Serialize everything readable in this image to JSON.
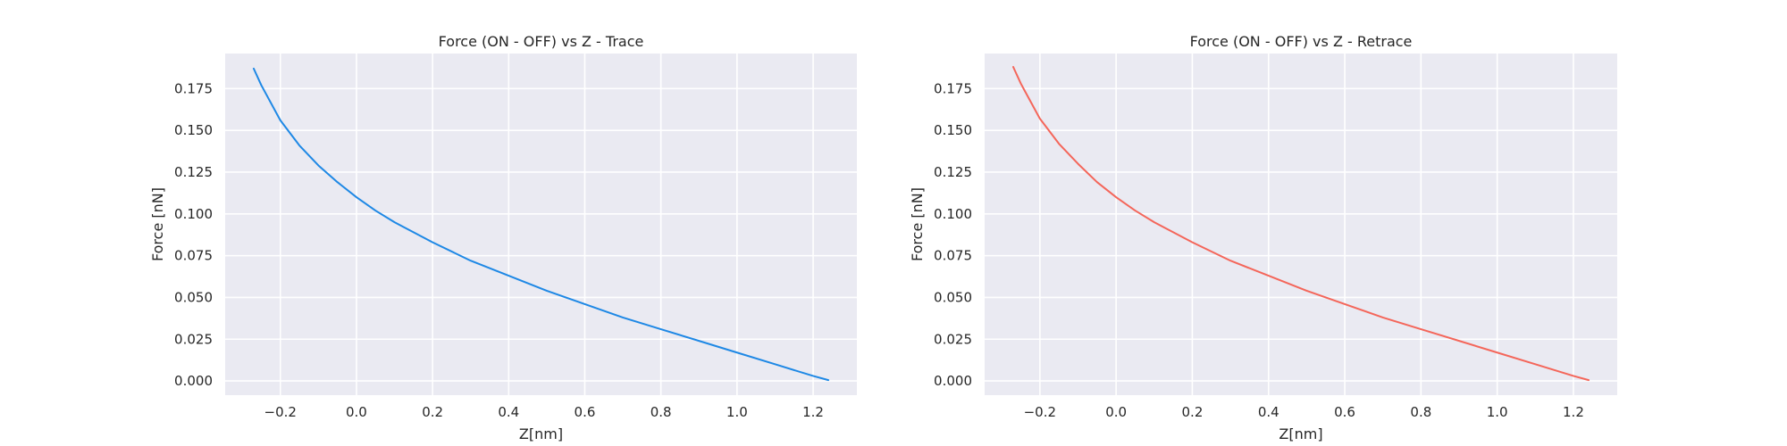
{
  "chart_data": [
    {
      "type": "line",
      "title": "Force (ON - OFF) vs Z - Trace",
      "xlabel": "Z[nm]",
      "ylabel": "Force [nN]",
      "xlim": [
        -0.345,
        1.315
      ],
      "ylim": [
        -0.0085,
        0.196
      ],
      "xticks": [
        -0.2,
        0.0,
        0.2,
        0.4,
        0.6,
        0.8,
        1.0,
        1.2
      ],
      "xtick_labels": [
        "−0.2",
        "0.0",
        "0.2",
        "0.4",
        "0.6",
        "0.8",
        "1.0",
        "1.2"
      ],
      "yticks": [
        0.0,
        0.025,
        0.05,
        0.075,
        0.1,
        0.125,
        0.15,
        0.175
      ],
      "ytick_labels": [
        "0.000",
        "0.025",
        "0.050",
        "0.075",
        "0.100",
        "0.125",
        "0.150",
        "0.175"
      ],
      "grid": true,
      "series": [
        {
          "color": "#1e88e5",
          "x": [
            -0.27,
            -0.25,
            -0.2,
            -0.15,
            -0.1,
            -0.05,
            0.0,
            0.05,
            0.1,
            0.15,
            0.2,
            0.3,
            0.4,
            0.5,
            0.6,
            0.7,
            0.8,
            0.9,
            1.0,
            1.1,
            1.2,
            1.24
          ],
          "y": [
            0.187,
            0.177,
            0.156,
            0.141,
            0.129,
            0.119,
            0.11,
            0.102,
            0.095,
            0.089,
            0.083,
            0.072,
            0.063,
            0.054,
            0.046,
            0.038,
            0.031,
            0.024,
            0.017,
            0.01,
            0.003,
            0.0005
          ]
        }
      ]
    },
    {
      "type": "line",
      "title": "Force (ON - OFF) vs Z - Retrace",
      "xlabel": "Z[nm]",
      "ylabel": "Force [nN]",
      "xlim": [
        -0.345,
        1.315
      ],
      "ylim": [
        -0.0085,
        0.196
      ],
      "xticks": [
        -0.2,
        0.0,
        0.2,
        0.4,
        0.6,
        0.8,
        1.0,
        1.2
      ],
      "xtick_labels": [
        "−0.2",
        "0.0",
        "0.2",
        "0.4",
        "0.6",
        "0.8",
        "1.0",
        "1.2"
      ],
      "yticks": [
        0.0,
        0.025,
        0.05,
        0.075,
        0.1,
        0.125,
        0.15,
        0.175
      ],
      "ytick_labels": [
        "0.000",
        "0.025",
        "0.050",
        "0.075",
        "0.100",
        "0.125",
        "0.150",
        "0.175"
      ],
      "grid": true,
      "series": [
        {
          "color": "#f4665a",
          "x": [
            -0.27,
            -0.25,
            -0.2,
            -0.15,
            -0.1,
            -0.05,
            0.0,
            0.05,
            0.1,
            0.15,
            0.2,
            0.3,
            0.4,
            0.5,
            0.6,
            0.7,
            0.8,
            0.9,
            1.0,
            1.1,
            1.2,
            1.24
          ],
          "y": [
            0.188,
            0.178,
            0.157,
            0.142,
            0.13,
            0.119,
            0.11,
            0.102,
            0.095,
            0.089,
            0.083,
            0.072,
            0.063,
            0.054,
            0.046,
            0.038,
            0.031,
            0.024,
            0.017,
            0.01,
            0.003,
            0.0005
          ]
        }
      ]
    }
  ]
}
